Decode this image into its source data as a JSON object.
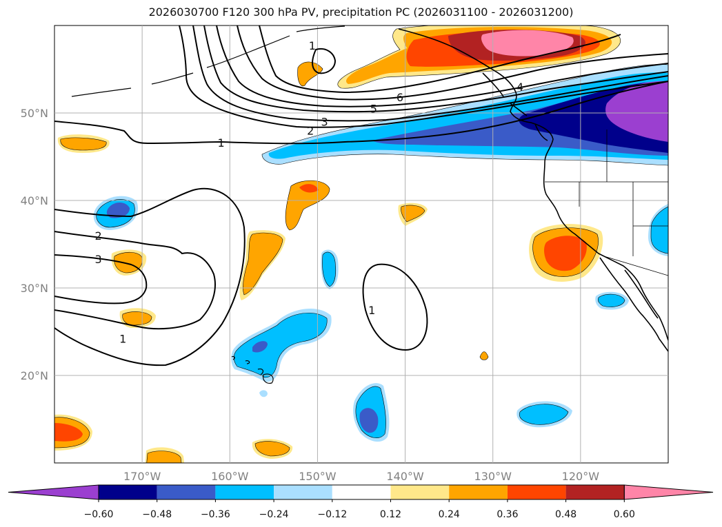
{
  "title": "2026030700 F120 300 hPa PV, precipitation PC (2026031100 - 2026031200)",
  "colors": {
    "grid": "#b0b0b0",
    "coast": "#000000",
    "neg_060": "#9b3fd0",
    "neg_048": "#00008b",
    "neg_036": "#3a5bc8",
    "neg_024": "#00bfff",
    "neg_012": "#aadfff",
    "zero": "#ffffff",
    "pos_012": "#ffe88a",
    "pos_024": "#ffa500",
    "pos_036": "#ff4500",
    "pos_048": "#b22222",
    "pos_060": "#ff85a8"
  },
  "chart_data": {
    "type": "map-contour",
    "title": "2026030700 F120 300 hPa PV, precipitation PC (2026031100 - 2026031200)",
    "lon_range": [
      -180,
      -110
    ],
    "lat_range": [
      10,
      60
    ],
    "lon_ticks": [
      {
        "value": -170,
        "label": "170°W"
      },
      {
        "value": -160,
        "label": "160°W"
      },
      {
        "value": -150,
        "label": "150°W"
      },
      {
        "value": -140,
        "label": "140°W"
      },
      {
        "value": -130,
        "label": "130°W"
      },
      {
        "value": -120,
        "label": "120°W"
      }
    ],
    "lat_ticks": [
      {
        "value": 20,
        "label": "20°N"
      },
      {
        "value": 30,
        "label": "30°N"
      },
      {
        "value": 40,
        "label": "40°N"
      },
      {
        "value": 50,
        "label": "50°N"
      }
    ],
    "colorbar": {
      "levels": [
        "−0.60",
        "−0.48",
        "−0.36",
        "−0.24",
        "−0.12",
        "0.12",
        "0.24",
        "0.36",
        "0.48",
        "0.60"
      ],
      "extend": "both"
    },
    "pv_contour_labels": [
      {
        "text": "1",
        "lon": -161.0,
        "lat": 46.6
      },
      {
        "text": "2",
        "lon": -150.8,
        "lat": 48.0
      },
      {
        "text": "3",
        "lon": -149.2,
        "lat": 49.0
      },
      {
        "text": "5",
        "lon": -143.6,
        "lat": 50.5
      },
      {
        "text": "6",
        "lon": -140.6,
        "lat": 51.8
      },
      {
        "text": "4",
        "lon": -126.9,
        "lat": 53.0
      },
      {
        "text": "1",
        "lon": -150.6,
        "lat": 57.7
      },
      {
        "text": "2",
        "lon": -175.0,
        "lat": 36.0
      },
      {
        "text": "3",
        "lon": -175.0,
        "lat": 33.3
      },
      {
        "text": "1",
        "lon": -172.2,
        "lat": 24.2
      },
      {
        "text": "1",
        "lon": -143.8,
        "lat": 27.5
      }
    ]
  }
}
